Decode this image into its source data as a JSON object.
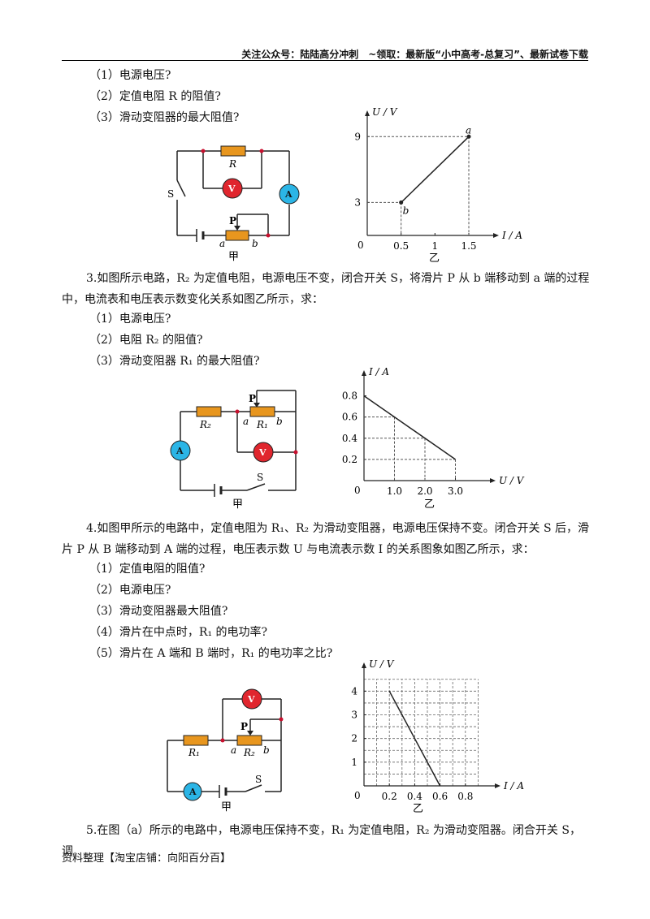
{
  "header": {
    "text": "关注公众号：陆陆高分冲刺　~领取：最新版“小中高考-总复习”、最新试卷下载"
  },
  "q2": {
    "items": [
      "（1）电源电压?",
      "（2）定值电阻 R 的阻值?",
      "（3）滑动变阻器的最大阻值?"
    ],
    "circuit": {
      "caption": "甲",
      "labels": {
        "R": "R",
        "V": "V",
        "A": "A",
        "S": "S",
        "P": "P",
        "a": "a",
        "b": "b"
      }
    },
    "graph": {
      "caption": "乙",
      "xlabel": "I / A",
      "ylabel": "U / V",
      "origin": "0",
      "xticks": [
        "0.5",
        "1",
        "1.5"
      ],
      "yticks": [
        "3",
        "9"
      ],
      "point_labels": {
        "a": "a",
        "b": "b"
      }
    }
  },
  "q3": {
    "stem": "3.如图所示电路，R₂ 为定值电阻，电源电压不变，闭合开关 S，将滑片 P 从 b 端移动到 a 端的过程中，电流表和电压表示数变化关系如图乙所示，求：",
    "items": [
      "（1）电源电压?",
      "（2）电阻 R₂ 的阻值?",
      "（3）滑动变阻器 R₁ 的最大阻值?"
    ],
    "circuit": {
      "caption": "甲",
      "labels": {
        "R2": "R₂",
        "R1": "R₁",
        "V": "V",
        "A": "A",
        "S": "S",
        "P": "P",
        "a": "a",
        "b": "b"
      }
    },
    "graph": {
      "caption": "乙",
      "xlabel": "U / V",
      "ylabel": "I / A",
      "origin": "0",
      "xticks": [
        "1.0",
        "2.0",
        "3.0"
      ],
      "yticks": [
        "0.2",
        "0.4",
        "0.6",
        "0.8"
      ]
    }
  },
  "q4": {
    "stem": "4.如图甲所示的电路中，定值电阻为 R₁、R₂ 为滑动变阻器，电源电压保持不变。闭合开关 S 后，滑片 P 从 B 端移动到 A 端的过程，电压表示数 U 与电流表示数 I 的关系图象如图乙所示，求：",
    "items": [
      "（1）定值电阻的阻值?",
      "（2）电源电压?",
      "（3）滑动变阻器最大阻值?",
      "（4）滑片在中点时，R₁ 的电功率?",
      "（5）滑片在 A 端和 B 端时，R₁ 的电功率之比?"
    ],
    "circuit": {
      "caption": "甲",
      "labels": {
        "R1": "R₁",
        "R2": "R₂",
        "V": "V",
        "A": "A",
        "S": "S",
        "P": "P",
        "a": "a",
        "b": "b"
      }
    },
    "graph": {
      "caption": "乙",
      "xlabel": "I / A",
      "ylabel": "U / V",
      "origin": "0",
      "xticks": [
        "0.2",
        "0.4",
        "0.6",
        "0.8"
      ],
      "yticks": [
        "1",
        "2",
        "3",
        "4"
      ]
    }
  },
  "q5": {
    "stem": "5.在图（a）所示的电路中，电源电压保持不变，R₁ 为定值电阻，R₂ 为滑动变阻器。闭合开关 S，调"
  },
  "footer": {
    "text": "资料整理【淘宝店铺：向阳百分百】"
  },
  "colors": {
    "wire": "#222222",
    "resistor": "#e8961e",
    "voltmeter": "#e0262e",
    "ammeter": "#2bb5e6",
    "node": "#c8102e"
  },
  "chart_data": [
    {
      "type": "line",
      "title": "",
      "xlabel": "I / A",
      "ylabel": "U / V",
      "series": [
        {
          "x": [
            0.5,
            1.5
          ],
          "y": [
            3,
            9
          ]
        }
      ],
      "xlim": [
        0,
        1.8
      ],
      "ylim": [
        0,
        10.5
      ],
      "grid": false
    },
    {
      "type": "line",
      "title": "",
      "xlabel": "U / V",
      "ylabel": "I / A",
      "series": [
        {
          "x": [
            0,
            3.0
          ],
          "y": [
            0.8,
            0.2
          ]
        }
      ],
      "xlim": [
        0,
        4.0
      ],
      "ylim": [
        0,
        0.95
      ],
      "grid": false
    },
    {
      "type": "line",
      "title": "",
      "xlabel": "I / A",
      "ylabel": "U / V",
      "series": [
        {
          "x": [
            0.2,
            0.6
          ],
          "y": [
            4,
            0
          ]
        }
      ],
      "xlim": [
        0,
        1.0
      ],
      "ylim": [
        0,
        4.8
      ],
      "grid": true
    }
  ]
}
